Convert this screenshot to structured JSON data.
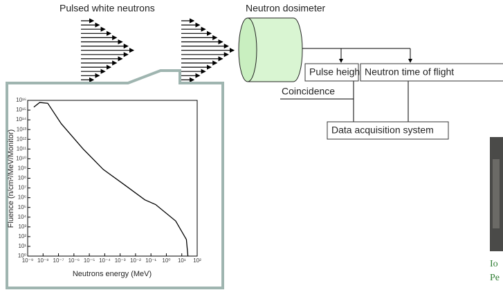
{
  "labels": {
    "pulsed": "Pulsed white neutrons",
    "dosimeter": "Neutron dosimeter",
    "pulse_height": "Pulse height",
    "tof": "Neutron time of flight",
    "coincidence": "Coincidence",
    "daq": "Data acquisition system"
  },
  "caption_fragments": [
    "Io",
    "Pe"
  ],
  "chart_data": {
    "type": "line",
    "xlabel": "Neutrons energy (MeV)",
    "ylabel": "Fluence (n/cm²/MeV/Monitor)",
    "xscale": "log",
    "yscale": "log",
    "x": [
      2.5e-09,
      6e-09,
      2e-08,
      1.5e-07,
      4e-06,
      8e-05,
      0.002,
      0.04,
      0.2,
      4,
      20,
      25
    ],
    "series": [
      {
        "color": "#000000",
        "values": [
          2000000000000000.0,
          6000000000000000.0,
          5000000000000000.0,
          40000000000000.0,
          100000000000.0,
          800000000.0,
          20000000.0,
          600000.0,
          200000.0,
          4000.0,
          50,
          1
        ]
      }
    ],
    "xlim": [
      1e-09,
      100
    ],
    "ylim": [
      1,
      1e+16
    ],
    "xticks": [
      {
        "value": 1e-09,
        "label": "10⁻⁹"
      },
      {
        "value": 1e-08,
        "label": "10⁻⁸"
      },
      {
        "value": 1e-07,
        "label": "10⁻⁷"
      },
      {
        "value": 1e-06,
        "label": "10⁻⁶"
      },
      {
        "value": 1e-05,
        "label": "10⁻⁵"
      },
      {
        "value": 0.0001,
        "label": "10⁻⁴"
      },
      {
        "value": 0.001,
        "label": "10⁻³"
      },
      {
        "value": 0.01,
        "label": "10⁻²"
      },
      {
        "value": 0.1,
        "label": "10⁻¹"
      },
      {
        "value": 1,
        "label": "10⁰"
      },
      {
        "value": 10,
        "label": "10¹"
      },
      {
        "value": 100,
        "label": "10²"
      }
    ],
    "yticks": [
      {
        "value": 1,
        "label": "10⁰"
      },
      {
        "value": 10.0,
        "label": "10¹"
      },
      {
        "value": 100.0,
        "label": "10²"
      },
      {
        "value": 1000.0,
        "label": "10³"
      },
      {
        "value": 10000.0,
        "label": "10⁴"
      },
      {
        "value": 100000.0,
        "label": "10⁵"
      },
      {
        "value": 1000000.0,
        "label": "10⁶"
      },
      {
        "value": 10000000.0,
        "label": "10⁷"
      },
      {
        "value": 100000000.0,
        "label": "10⁸"
      },
      {
        "value": 1000000000.0,
        "label": "10⁹"
      },
      {
        "value": 10000000000.0,
        "label": "10¹⁰"
      },
      {
        "value": 100000000000.0,
        "label": "10¹¹"
      },
      {
        "value": 1000000000000.0,
        "label": "10¹²"
      },
      {
        "value": 10000000000000.0,
        "label": "10¹³"
      },
      {
        "value": 100000000000000.0,
        "label": "10¹⁴"
      },
      {
        "value": 1000000000000000.0,
        "label": "10¹⁵"
      },
      {
        "value": 1e+16,
        "label": "10¹⁶"
      }
    ]
  }
}
